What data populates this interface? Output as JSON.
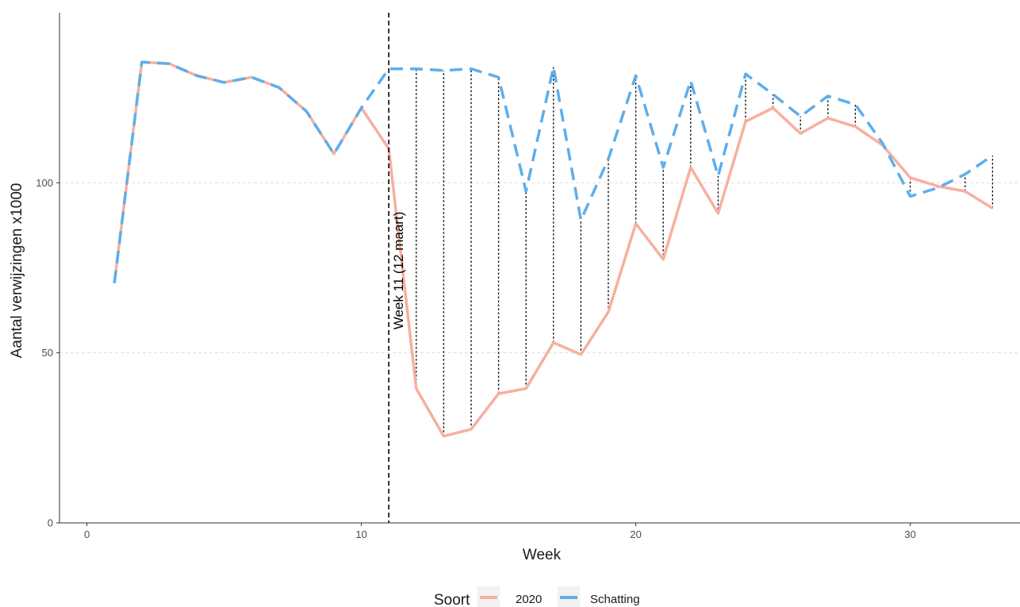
{
  "chart_data": {
    "type": "line",
    "xlabel": "Week",
    "ylabel": "Aantal verwijzingen x1000",
    "xlim": [
      -1,
      34
    ],
    "ylim": [
      0,
      150
    ],
    "x_ticks": [
      0,
      10,
      20,
      30
    ],
    "y_ticks": [
      0,
      50,
      100
    ],
    "grid": "horizontal major, dashed light grey",
    "x": [
      1,
      2,
      3,
      4,
      5,
      6,
      7,
      8,
      9,
      10,
      11,
      12,
      13,
      14,
      15,
      16,
      17,
      18,
      19,
      20,
      21,
      22,
      23,
      24,
      25,
      26,
      27,
      28,
      29,
      30,
      31,
      32,
      33
    ],
    "series": [
      {
        "name": "2020",
        "color": "#F8AF9F",
        "style": "solid",
        "values": [
          70.5,
          135.5,
          135,
          131.5,
          129.5,
          131,
          128,
          121,
          108.5,
          122,
          110,
          39.5,
          25.5,
          27.5,
          38,
          39.5,
          53,
          49.5,
          62,
          88,
          77.5,
          104.5,
          91,
          118,
          122,
          114.5,
          119,
          116.5,
          111,
          101.5,
          99,
          97.5,
          92.5
        ]
      },
      {
        "name": "Schatting",
        "color": "#5DAEEB",
        "style": "dashed",
        "values": [
          70.5,
          135.5,
          135,
          131.5,
          129.5,
          131,
          128,
          121,
          108.5,
          122,
          133.5,
          133.5,
          133,
          133.5,
          131,
          97.5,
          134,
          89,
          107,
          131.5,
          104.5,
          130,
          102,
          132,
          126,
          119.5,
          125.5,
          123,
          111.5,
          96,
          98.5,
          102.5,
          108
        ]
      }
    ],
    "vertical_line": {
      "x": 11,
      "label": "Week 11 (12 maart)"
    },
    "difference_segments": {
      "from_week": 12,
      "to_week": 33,
      "style": "dotted black"
    },
    "legend": {
      "title": "Soort",
      "position": "bottom",
      "items": [
        "2020",
        "Schatting"
      ]
    }
  }
}
